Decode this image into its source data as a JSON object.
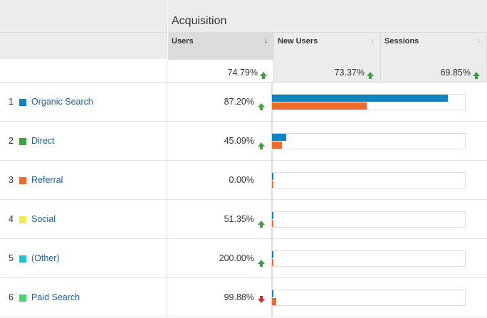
{
  "header": {
    "group_title": "Acquisition",
    "columns": [
      {
        "label": "Users",
        "sort_icon": "↓",
        "active": true
      },
      {
        "label": "New Users",
        "sort_icon": "↓",
        "active": false
      },
      {
        "label": "Sessions",
        "sort_icon": "↓",
        "active": false
      }
    ]
  },
  "totals": [
    {
      "value": "74.79%",
      "trend": "up"
    },
    {
      "value": "73.37%",
      "trend": "up"
    },
    {
      "value": "69.85%",
      "trend": "up"
    }
  ],
  "colors": {
    "current": "#0b84c1",
    "previous": "#ee6b2d"
  },
  "rows": [
    {
      "index": "1",
      "name": "Organic Search",
      "color": "#0b84c1",
      "users_change": "87.20%",
      "trend": "up",
      "bar_current": 0.91,
      "bar_previous": 0.49
    },
    {
      "index": "2",
      "name": "Direct",
      "color": "#3fa142",
      "users_change": "45.09%",
      "trend": "up",
      "bar_current": 0.074,
      "bar_previous": 0.051
    },
    {
      "index": "3",
      "name": "Referral",
      "color": "#ee6b2d",
      "users_change": "0.00%",
      "trend": "none",
      "bar_current": 0.008,
      "bar_previous": 0.008
    },
    {
      "index": "4",
      "name": "Social",
      "color": "#f2e94e",
      "users_change": "51.35%",
      "trend": "up",
      "bar_current": 0.008,
      "bar_previous": 0.005
    },
    {
      "index": "5",
      "name": "(Other)",
      "color": "#1ec3d6",
      "users_change": "200.00%",
      "trend": "up",
      "bar_current": 0.004,
      "bar_previous": 0.002
    },
    {
      "index": "6",
      "name": "Paid Search",
      "color": "#49d36b",
      "users_change": "99.88%",
      "trend": "down",
      "bar_current": 0.006,
      "bar_previous": 0.022
    }
  ]
}
